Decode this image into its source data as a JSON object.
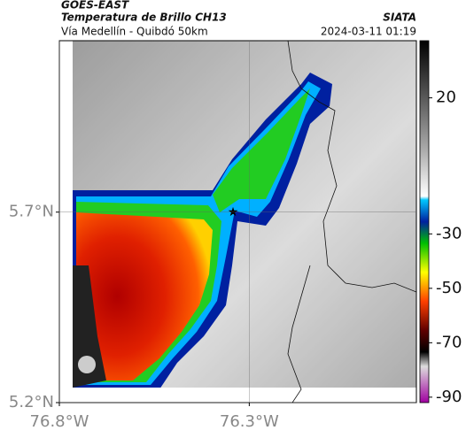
{
  "header": {
    "title": "GOES-EAST",
    "subtitle": "Temperatura de Brillo CH13",
    "route": "Vía Medellín - Quibdó 50km",
    "source": "SIATA",
    "timestamp": "2024-03-11 01:19"
  },
  "map": {
    "latlim": [
      5.2,
      6.15
    ],
    "lonlim": [
      -76.8,
      -75.86
    ],
    "lat_ticks": [
      {
        "value": 5.7,
        "label": "5.7°N"
      },
      {
        "value": 5.2,
        "label": "5.2°N"
      }
    ],
    "lon_ticks": [
      {
        "value": -76.8,
        "label": "76.8°W"
      },
      {
        "value": -76.3,
        "label": "76.3°W"
      }
    ],
    "grid": true
  },
  "colorbar": {
    "lim": [
      -92,
      41
    ],
    "ticks": [
      20,
      -30,
      -50,
      -70,
      -90
    ]
  }
}
